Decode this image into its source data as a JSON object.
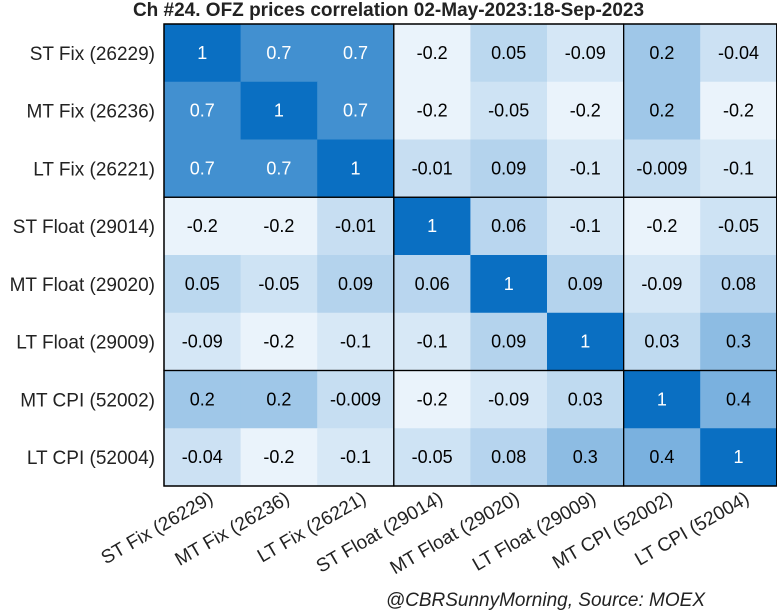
{
  "chart_data": {
    "type": "heatmap",
    "title": "Ch #24. OFZ prices correlation 02-May-2023:18-Sep-2023",
    "source": "@CBRSunnyMorning, Source: MOEX",
    "row_labels": [
      "ST Fix (26229)",
      "MT Fix (26236)",
      "LT Fix (26221)",
      "ST Float (29014)",
      "MT Float (29020)",
      "LT Float (29009)",
      "MT CPI (52002)",
      "LT CPI (52004)"
    ],
    "col_labels": [
      "ST Fix (26229)",
      "MT Fix (26236)",
      "LT Fix (26221)",
      "ST Float (29014)",
      "MT Float (29020)",
      "LT Float (29009)",
      "MT CPI (52002)",
      "LT CPI (52004)"
    ],
    "values": [
      [
        1,
        0.7,
        0.7,
        -0.2,
        0.05,
        -0.09,
        0.2,
        -0.04
      ],
      [
        0.7,
        1,
        0.7,
        -0.2,
        -0.05,
        -0.2,
        0.2,
        -0.2
      ],
      [
        0.7,
        0.7,
        1,
        -0.01,
        0.09,
        -0.1,
        -0.009,
        -0.1
      ],
      [
        -0.2,
        -0.2,
        -0.01,
        1,
        0.06,
        -0.1,
        -0.2,
        -0.05
      ],
      [
        0.05,
        -0.05,
        0.09,
        0.06,
        1,
        0.09,
        -0.09,
        0.08
      ],
      [
        -0.09,
        -0.2,
        -0.1,
        -0.1,
        0.09,
        1,
        0.03,
        0.3
      ],
      [
        0.2,
        0.2,
        -0.009,
        -0.2,
        -0.09,
        0.03,
        1,
        0.4
      ],
      [
        -0.04,
        -0.2,
        -0.1,
        -0.05,
        0.08,
        0.3,
        0.4,
        1
      ]
    ],
    "groups": [
      [
        0,
        3
      ],
      [
        3,
        6
      ],
      [
        6,
        8
      ]
    ],
    "colors": {
      "low": "#eaf3fb",
      "high": "#0a6fc2",
      "text_dark": "#000000",
      "text_light": "#ffffff",
      "grid": "#000000"
    }
  }
}
